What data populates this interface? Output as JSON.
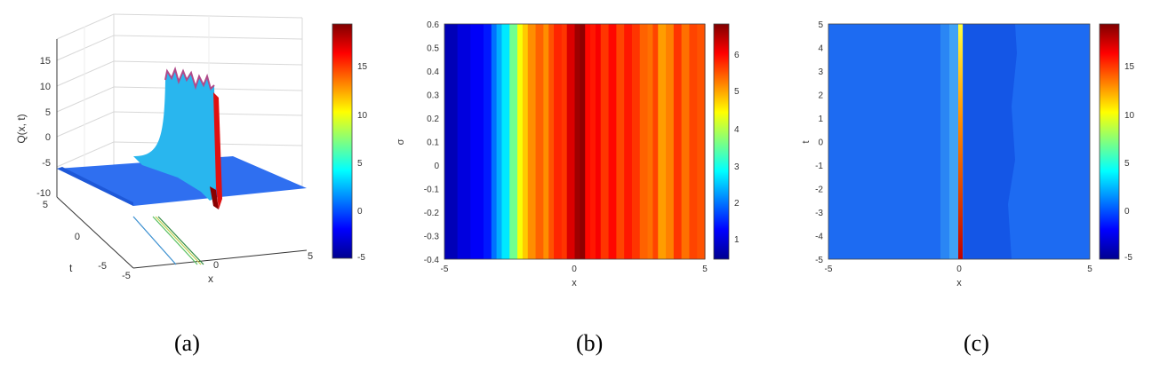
{
  "chart_data": [
    {
      "type": "surface3d",
      "caption": "(a)",
      "zlabel": "Q(x, t)",
      "xlabel": "x",
      "ylabel": "t",
      "xlim": [
        -5,
        5
      ],
      "ylim": [
        -5,
        5
      ],
      "zlim": [
        -10,
        18
      ],
      "x_ticks": [
        "-5",
        "0",
        "5"
      ],
      "y_ticks": [
        "-5",
        "0",
        "5"
      ],
      "z_ticks": [
        "-10",
        "-5",
        "0",
        "5",
        "10",
        "15"
      ],
      "colorbar": {
        "min": -5,
        "max": 19,
        "ticks": [
          "15",
          "10",
          "5",
          "0",
          "-5"
        ]
      },
      "description_values": {
        "ridge_x": 0.6,
        "ridge_height": 12,
        "dip": -10
      }
    },
    {
      "type": "heatmap",
      "caption": "(b)",
      "xlabel": "x",
      "ylabel": "σ",
      "xlim": [
        -5,
        5
      ],
      "ylim": [
        -0.4,
        0.6
      ],
      "x_ticks": [
        "-5",
        "0",
        "5"
      ],
      "y_ticks": [
        "0.6",
        "0.5",
        "0.4",
        "0.3",
        "0.2",
        "0.1",
        "0",
        "-0.1",
        "-0.2",
        "-0.3",
        "-0.4"
      ],
      "colorbar": {
        "min": 0,
        "max": 6.8,
        "ticks": [
          "6",
          "5",
          "4",
          "3",
          "2",
          "1"
        ]
      },
      "profile_x": [
        -5,
        -4.5,
        -4,
        -3.5,
        -3.2,
        -3,
        -2.8,
        -2.5,
        -2.2,
        -2,
        -1.8,
        -1.5,
        -1.2,
        -1,
        -0.8,
        -0.5,
        -0.3,
        0,
        0.2,
        0.4,
        0.6,
        0.8,
        1,
        1.3,
        1.6,
        1.9,
        2.2,
        2.5,
        2.8,
        3,
        3.2,
        3.5,
        3.8,
        4.1,
        4.4,
        4.7,
        5
      ],
      "profile_values": [
        0.3,
        0.6,
        0.8,
        1.0,
        1.6,
        2.0,
        2.4,
        3.3,
        4.2,
        4.6,
        5.0,
        5.3,
        5.0,
        5.4,
        5.7,
        5.6,
        6.2,
        6.6,
        6.7,
        5.9,
        5.8,
        6.0,
        5.6,
        5.9,
        5.5,
        5.8,
        5.6,
        5.3,
        5.2,
        5.5,
        4.9,
        5.1,
        5.6,
        5.2,
        5.5,
        5.4,
        5.3
      ]
    },
    {
      "type": "heatmap",
      "caption": "(c)",
      "xlabel": "x",
      "ylabel": "t",
      "xlim": [
        -5,
        5
      ],
      "ylim": [
        -5,
        5
      ],
      "x_ticks": [
        "-5",
        "0",
        "5"
      ],
      "y_ticks": [
        "5",
        "4",
        "3",
        "2",
        "1",
        "0",
        "-1",
        "-2",
        "-3",
        "-4",
        "-5"
      ],
      "colorbar": {
        "min": -5,
        "max": 19,
        "ticks": [
          "15",
          "10",
          "5",
          "0",
          "-5"
        ]
      },
      "background_value": 0,
      "bright_line": {
        "x": 0.6,
        "top_value": 12,
        "bottom_value": 17
      }
    }
  ]
}
